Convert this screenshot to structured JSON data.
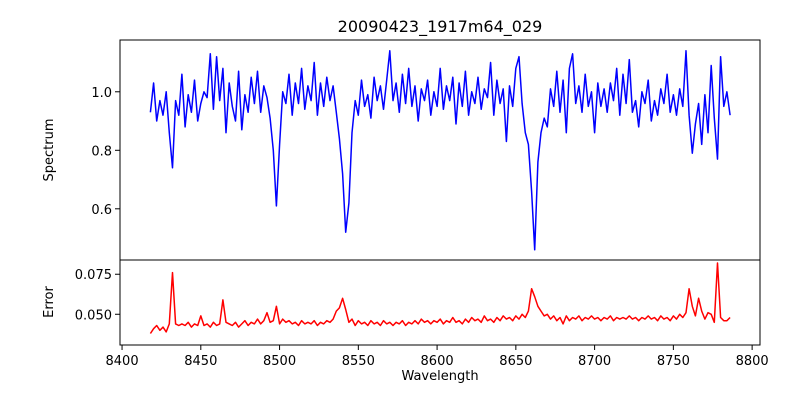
{
  "chart_data": {
    "type": "line",
    "title": "20090423_1917m64_029",
    "xlabel": "Wavelength",
    "xlim": [
      8398.7,
      8805
    ],
    "x_start": 8418,
    "x_step": 2,
    "x_ticks": [
      8400,
      8450,
      8500,
      8550,
      8600,
      8650,
      8700,
      8750,
      8800
    ],
    "x_tick_labels": [
      "8400",
      "8450",
      "8500",
      "8550",
      "8600",
      "8650",
      "8700",
      "8750",
      "8800"
    ],
    "grid": false,
    "panels": [
      {
        "name": "spectrum",
        "ylabel": "Spectrum",
        "ylim": [
          0.425,
          1.177
        ],
        "yticks": [
          0.6,
          0.8,
          1.0
        ],
        "ytick_labels": [
          "0.6",
          "0.8",
          "1.0"
        ],
        "color": "#0000ff",
        "values": [
          0.93,
          1.03,
          0.9,
          0.97,
          0.92,
          1.0,
          0.86,
          0.74,
          0.97,
          0.92,
          1.06,
          0.88,
          0.99,
          0.93,
          1.04,
          0.9,
          0.96,
          1.0,
          0.98,
          1.13,
          0.94,
          1.12,
          0.97,
          1.08,
          0.86,
          1.03,
          0.95,
          0.9,
          1.07,
          0.87,
          0.99,
          0.93,
          1.05,
          0.96,
          1.07,
          0.93,
          1.02,
          0.98,
          0.91,
          0.8,
          0.61,
          0.82,
          1.0,
          0.96,
          1.06,
          0.92,
          1.03,
          0.96,
          1.08,
          0.94,
          1.02,
          0.97,
          1.1,
          0.92,
          1.03,
          0.95,
          1.05,
          0.97,
          1.02,
          0.93,
          0.84,
          0.72,
          0.52,
          0.62,
          0.86,
          0.97,
          0.92,
          1.04,
          0.95,
          0.99,
          0.91,
          1.05,
          0.97,
          1.02,
          0.94,
          1.04,
          1.14,
          0.97,
          1.03,
          0.93,
          1.06,
          0.96,
          1.08,
          0.95,
          1.02,
          0.9,
          1.01,
          0.97,
          1.04,
          0.92,
          1.0,
          0.95,
          1.08,
          0.94,
          1.02,
          0.97,
          1.05,
          0.89,
          1.03,
          0.95,
          1.07,
          0.92,
          1.0,
          0.96,
          1.05,
          0.94,
          1.01,
          0.98,
          1.1,
          0.92,
          1.04,
          0.96,
          1.01,
          0.83,
          1.02,
          0.95,
          1.08,
          1.12,
          0.96,
          0.86,
          0.82,
          0.66,
          0.46,
          0.76,
          0.86,
          0.91,
          0.88,
          1.01,
          0.95,
          1.07,
          0.93,
          1.04,
          0.86,
          1.08,
          1.13,
          0.96,
          1.02,
          0.93,
          1.06,
          0.95,
          1.0,
          0.86,
          1.03,
          0.95,
          1.01,
          0.93,
          1.03,
          0.97,
          1.08,
          0.92,
          1.06,
          0.96,
          1.11,
          0.93,
          0.97,
          0.88,
          1.0,
          0.96,
          1.04,
          0.9,
          0.97,
          0.92,
          1.01,
          0.96,
          1.06,
          0.93,
          0.99,
          0.92,
          1.01,
          0.95,
          1.14,
          0.92,
          0.79,
          0.89,
          0.96,
          0.82,
          0.99,
          0.86,
          1.09,
          0.91,
          0.77,
          1.12,
          0.95,
          1.0,
          0.92
        ]
      },
      {
        "name": "error",
        "ylabel": "Error",
        "ylim": [
          0.0308,
          0.0839
        ],
        "yticks": [
          0.05,
          0.075
        ],
        "ytick_labels": [
          "0.050",
          "0.075"
        ],
        "color": "#ff0000",
        "values": [
          0.038,
          0.041,
          0.043,
          0.04,
          0.042,
          0.039,
          0.044,
          0.076,
          0.044,
          0.043,
          0.044,
          0.043,
          0.045,
          0.042,
          0.044,
          0.043,
          0.049,
          0.043,
          0.044,
          0.042,
          0.045,
          0.043,
          0.044,
          0.059,
          0.045,
          0.044,
          0.043,
          0.045,
          0.042,
          0.044,
          0.046,
          0.043,
          0.045,
          0.044,
          0.047,
          0.044,
          0.046,
          0.051,
          0.045,
          0.046,
          0.055,
          0.044,
          0.047,
          0.045,
          0.046,
          0.044,
          0.045,
          0.043,
          0.046,
          0.044,
          0.045,
          0.044,
          0.046,
          0.043,
          0.045,
          0.044,
          0.046,
          0.045,
          0.047,
          0.052,
          0.054,
          0.06,
          0.053,
          0.045,
          0.047,
          0.043,
          0.046,
          0.044,
          0.045,
          0.043,
          0.046,
          0.044,
          0.045,
          0.043,
          0.046,
          0.044,
          0.045,
          0.043,
          0.045,
          0.044,
          0.046,
          0.043,
          0.045,
          0.044,
          0.046,
          0.044,
          0.047,
          0.045,
          0.046,
          0.044,
          0.046,
          0.045,
          0.047,
          0.044,
          0.046,
          0.045,
          0.048,
          0.045,
          0.046,
          0.044,
          0.047,
          0.045,
          0.048,
          0.046,
          0.047,
          0.045,
          0.049,
          0.046,
          0.047,
          0.045,
          0.048,
          0.046,
          0.049,
          0.047,
          0.048,
          0.046,
          0.049,
          0.047,
          0.05,
          0.048,
          0.052,
          0.066,
          0.061,
          0.055,
          0.052,
          0.049,
          0.05,
          0.047,
          0.049,
          0.046,
          0.048,
          0.044,
          0.049,
          0.046,
          0.048,
          0.047,
          0.049,
          0.046,
          0.048,
          0.047,
          0.049,
          0.047,
          0.048,
          0.046,
          0.048,
          0.047,
          0.049,
          0.046,
          0.048,
          0.047,
          0.048,
          0.047,
          0.049,
          0.047,
          0.048,
          0.046,
          0.048,
          0.047,
          0.049,
          0.047,
          0.048,
          0.046,
          0.049,
          0.047,
          0.048,
          0.046,
          0.049,
          0.047,
          0.05,
          0.048,
          0.051,
          0.066,
          0.055,
          0.049,
          0.06,
          0.052,
          0.047,
          0.051,
          0.05,
          0.045,
          0.082,
          0.048,
          0.046,
          0.046,
          0.048
        ]
      }
    ]
  }
}
